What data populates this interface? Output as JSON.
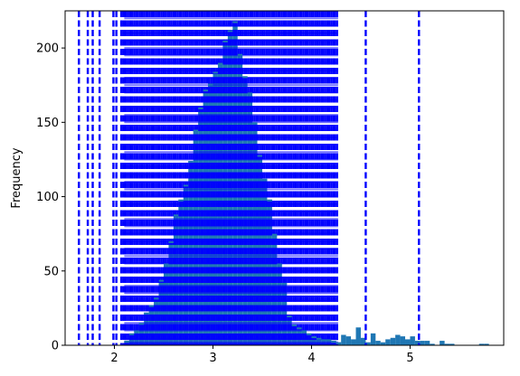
{
  "chart_data": {
    "type": "bar",
    "title": "",
    "xlabel": "",
    "ylabel": "Frequency",
    "xlim": [
      1.5,
      5.95
    ],
    "ylim": [
      0,
      225
    ],
    "xticks": [
      2,
      3,
      4,
      5
    ],
    "yticks": [
      0,
      50,
      100,
      150,
      200
    ],
    "grid": false,
    "bar_color": "#1f77b4",
    "line_color": "#0000ff",
    "bin_width": 0.05,
    "bins": [
      {
        "x": 2.1,
        "y": 3
      },
      {
        "x": 2.15,
        "y": 8
      },
      {
        "x": 2.2,
        "y": 10
      },
      {
        "x": 2.25,
        "y": 15
      },
      {
        "x": 2.3,
        "y": 22
      },
      {
        "x": 2.35,
        "y": 27
      },
      {
        "x": 2.4,
        "y": 32
      },
      {
        "x": 2.45,
        "y": 44
      },
      {
        "x": 2.5,
        "y": 55
      },
      {
        "x": 2.55,
        "y": 70
      },
      {
        "x": 2.6,
        "y": 88
      },
      {
        "x": 2.65,
        "y": 98
      },
      {
        "x": 2.7,
        "y": 108
      },
      {
        "x": 2.75,
        "y": 124
      },
      {
        "x": 2.8,
        "y": 145
      },
      {
        "x": 2.85,
        "y": 160
      },
      {
        "x": 2.9,
        "y": 172
      },
      {
        "x": 2.95,
        "y": 176
      },
      {
        "x": 3.0,
        "y": 184
      },
      {
        "x": 3.05,
        "y": 190
      },
      {
        "x": 3.1,
        "y": 205
      },
      {
        "x": 3.15,
        "y": 212
      },
      {
        "x": 3.2,
        "y": 218
      },
      {
        "x": 3.25,
        "y": 196
      },
      {
        "x": 3.3,
        "y": 181
      },
      {
        "x": 3.35,
        "y": 170
      },
      {
        "x": 3.4,
        "y": 150
      },
      {
        "x": 3.45,
        "y": 128
      },
      {
        "x": 3.5,
        "y": 112
      },
      {
        "x": 3.55,
        "y": 98
      },
      {
        "x": 3.6,
        "y": 75
      },
      {
        "x": 3.65,
        "y": 55
      },
      {
        "x": 3.7,
        "y": 42
      },
      {
        "x": 3.75,
        "y": 20
      },
      {
        "x": 3.8,
        "y": 14
      },
      {
        "x": 3.85,
        "y": 12
      },
      {
        "x": 3.9,
        "y": 10
      },
      {
        "x": 3.95,
        "y": 8
      },
      {
        "x": 4.0,
        "y": 6
      },
      {
        "x": 4.05,
        "y": 5
      },
      {
        "x": 4.1,
        "y": 4
      },
      {
        "x": 4.15,
        "y": 4
      },
      {
        "x": 4.2,
        "y": 3
      },
      {
        "x": 4.25,
        "y": 2
      },
      {
        "x": 4.3,
        "y": 7
      },
      {
        "x": 4.35,
        "y": 6
      },
      {
        "x": 4.4,
        "y": 4
      },
      {
        "x": 4.45,
        "y": 12
      },
      {
        "x": 4.5,
        "y": 5
      },
      {
        "x": 4.55,
        "y": 2
      },
      {
        "x": 4.6,
        "y": 8
      },
      {
        "x": 4.65,
        "y": 3
      },
      {
        "x": 4.7,
        "y": 2
      },
      {
        "x": 4.75,
        "y": 4
      },
      {
        "x": 4.8,
        "y": 5
      },
      {
        "x": 4.85,
        "y": 7
      },
      {
        "x": 4.9,
        "y": 6
      },
      {
        "x": 4.95,
        "y": 4
      },
      {
        "x": 5.0,
        "y": 6
      },
      {
        "x": 5.05,
        "y": 3
      },
      {
        "x": 5.1,
        "y": 3
      },
      {
        "x": 5.15,
        "y": 3
      },
      {
        "x": 5.2,
        "y": 1
      },
      {
        "x": 5.3,
        "y": 3
      },
      {
        "x": 5.35,
        "y": 1
      },
      {
        "x": 5.4,
        "y": 1
      },
      {
        "x": 5.7,
        "y": 1
      },
      {
        "x": 5.75,
        "y": 1
      }
    ],
    "vertical_lines": [
      1.64,
      1.73,
      1.78,
      1.85,
      1.99,
      2.02,
      2.07,
      2.09,
      4.55,
      5.09
    ],
    "dense_lines_range": [
      2.1,
      4.27
    ],
    "horizontal_lines": [
      2,
      4,
      7,
      10,
      15,
      20,
      25,
      30,
      35,
      40,
      45,
      50,
      55,
      60,
      65,
      70,
      75,
      80,
      85,
      90,
      95,
      100,
      105,
      110,
      115,
      120,
      125,
      130,
      135,
      140,
      145,
      150,
      155,
      160,
      165,
      170,
      175,
      180,
      185,
      190,
      195,
      200,
      205,
      210,
      215,
      220
    ]
  }
}
